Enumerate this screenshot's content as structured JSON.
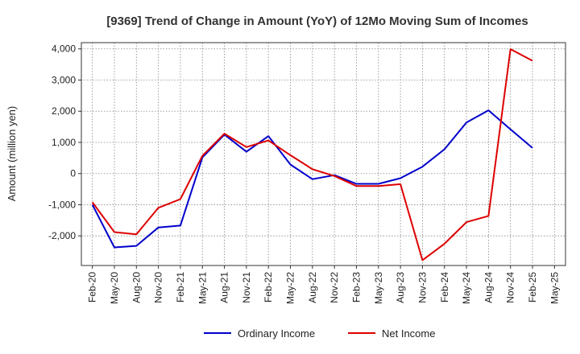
{
  "chart_data": {
    "type": "line",
    "title": "[9369]  Trend of Change in Amount (YoY) of 12Mo Moving Sum of Incomes",
    "xlabel": "",
    "ylabel": "Amount (million yen)",
    "ylim": [
      -2950,
      4200
    ],
    "yticks": [
      4000,
      3000,
      2000,
      1000,
      0,
      -1000,
      -2000
    ],
    "ytick_labels": [
      "4,000",
      "3,000",
      "2,000",
      "1,000",
      "0",
      "-1,000",
      "-2,000"
    ],
    "categories": [
      "Feb-20",
      "May-20",
      "Aug-20",
      "Nov-20",
      "Feb-21",
      "May-21",
      "Aug-21",
      "Nov-21",
      "Feb-22",
      "May-22",
      "Aug-22",
      "Nov-22",
      "Feb-23",
      "May-23",
      "Aug-23",
      "Nov-23",
      "Feb-24",
      "May-24",
      "Aug-24",
      "Nov-24",
      "Feb-25",
      "May-25"
    ],
    "grid": true,
    "legend_position": "bottom",
    "series": [
      {
        "name": "Ordinary Income",
        "color": "#0000cc",
        "values": [
          -1000,
          -2370,
          -2320,
          -1730,
          -1670,
          520,
          1250,
          700,
          1200,
          290,
          -180,
          -50,
          -330,
          -330,
          -150,
          220,
          780,
          1640,
          2030,
          1420,
          820,
          null
        ]
      },
      {
        "name": "Net Income",
        "color": "#dd0000",
        "values": [
          -920,
          -1880,
          -1950,
          -1100,
          -820,
          570,
          1280,
          850,
          1060,
          590,
          140,
          -80,
          -400,
          -400,
          -340,
          -2780,
          -2250,
          -1560,
          -1360,
          3990,
          3620,
          null
        ]
      }
    ]
  }
}
